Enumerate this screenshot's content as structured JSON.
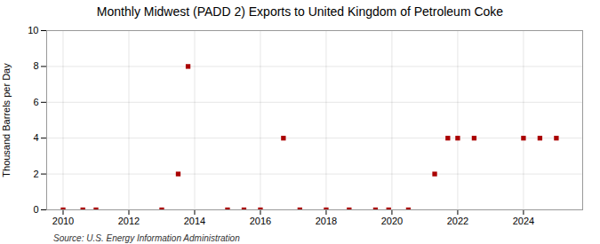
{
  "chart_data": {
    "type": "scatter",
    "title": "Monthly Midwest (PADD 2) Exports to United Kingdom of Petroleum Coke",
    "y_label": "Thousand Barrels per Day",
    "annotations": [
      "Source: U.S. Energy Information Administration"
    ],
    "x": [
      2010.0,
      2010.6,
      2011.0,
      2013.0,
      2013.5,
      2013.8,
      2015.0,
      2015.5,
      2016.0,
      2016.7,
      2017.2,
      2018.0,
      2018.7,
      2019.5,
      2019.9,
      2020.5,
      2021.3,
      2021.7,
      2022.0,
      2022.5,
      2024.0,
      2024.5,
      2025.0
    ],
    "values": [
      0.0,
      0.0,
      0.0,
      0.0,
      2.0,
      8.0,
      0.0,
      0.0,
      0.0,
      4.0,
      0.0,
      0.0,
      0.0,
      0.0,
      0.0,
      0.0,
      2.0,
      4.0,
      4.0,
      4.0,
      4.0,
      4.0,
      4.0
    ],
    "color": "#aa0000",
    "marker": "square",
    "xlim": [
      2009.5,
      2025.8
    ],
    "ylim": [
      0,
      10
    ],
    "xticks": [
      2010,
      2012,
      2014,
      2016,
      2018,
      2020,
      2022,
      2024
    ],
    "yticks": [
      0,
      2,
      4,
      6,
      8,
      10
    ],
    "grid": true
  }
}
